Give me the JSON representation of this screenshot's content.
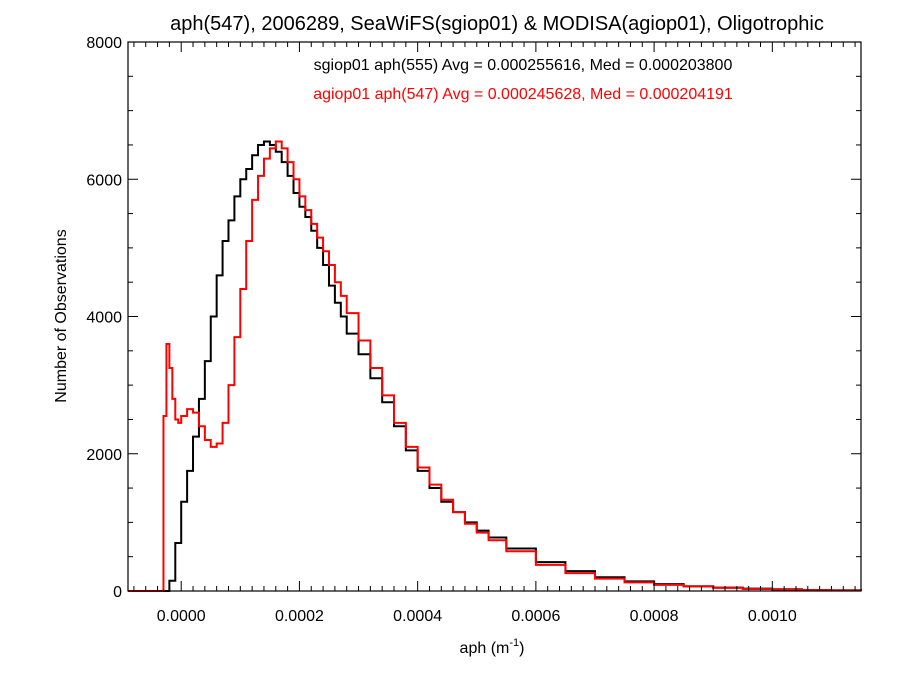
{
  "chart_data": {
    "type": "line",
    "step": true,
    "title": "aph(547), 2006289, SeaWiFS(sgiop01) & MODISA(agiop01), Oligotrophic",
    "xlabel": "aph (m",
    "xlabel_sup": "-1",
    "xlabel_close": ")",
    "ylabel": "Number of Observations",
    "xlim": [
      -9e-05,
      0.00115
    ],
    "ylim": [
      0,
      8000
    ],
    "x_ticks": [
      0.0,
      0.0002,
      0.0004,
      0.0006,
      0.0008,
      0.001
    ],
    "x_tick_labels": [
      "0.0000",
      "0.0002",
      "0.0004",
      "0.0006",
      "0.0008",
      "0.0010"
    ],
    "y_ticks": [
      0,
      2000,
      4000,
      6000,
      8000
    ],
    "y_tick_labels": [
      "0",
      "2000",
      "4000",
      "6000",
      "8000"
    ],
    "grid": false,
    "legend": "top-right annotations",
    "annotations": [
      {
        "text": "sgiop01 aph(555) Avg = 0.000255616, Med = 0.000203800",
        "color": "#000000"
      },
      {
        "text": "agiop01 aph(547) Avg = 0.000245628, Med = 0.000204191",
        "color": "#ff0000"
      }
    ],
    "series": [
      {
        "color": "#000000",
        "points": [
          [
            -9e-05,
            0
          ],
          [
            -3e-05,
            0
          ],
          [
            -2e-05,
            150
          ],
          [
            -1e-05,
            700
          ],
          [
            0.0,
            1300
          ],
          [
            1e-05,
            1750
          ],
          [
            2e-05,
            2250
          ],
          [
            3e-05,
            2800
          ],
          [
            4e-05,
            3350
          ],
          [
            5e-05,
            4000
          ],
          [
            6e-05,
            4600
          ],
          [
            7e-05,
            5100
          ],
          [
            8e-05,
            5400
          ],
          [
            9e-05,
            5750
          ],
          [
            0.0001,
            6000
          ],
          [
            0.00011,
            6150
          ],
          [
            0.00012,
            6350
          ],
          [
            0.00013,
            6500
          ],
          [
            0.00014,
            6550
          ],
          [
            0.00015,
            6500
          ],
          [
            0.00016,
            6400
          ],
          [
            0.00017,
            6250
          ],
          [
            0.00018,
            6050
          ],
          [
            0.00019,
            5800
          ],
          [
            0.0002,
            5600
          ],
          [
            0.00021,
            5450
          ],
          [
            0.00022,
            5250
          ],
          [
            0.00023,
            5000
          ],
          [
            0.00024,
            4750
          ],
          [
            0.00025,
            4450
          ],
          [
            0.00026,
            4200
          ],
          [
            0.00027,
            4000
          ],
          [
            0.00028,
            3750
          ],
          [
            0.0003,
            3450
          ],
          [
            0.00032,
            3100
          ],
          [
            0.00034,
            2750
          ],
          [
            0.00036,
            2400
          ],
          [
            0.00038,
            2050
          ],
          [
            0.0004,
            1750
          ],
          [
            0.00042,
            1500
          ],
          [
            0.00044,
            1300
          ],
          [
            0.00046,
            1150
          ],
          [
            0.00048,
            1000
          ],
          [
            0.0005,
            880
          ],
          [
            0.00052,
            780
          ],
          [
            0.00055,
            620
          ],
          [
            0.0006,
            420
          ],
          [
            0.00065,
            290
          ],
          [
            0.0007,
            200
          ],
          [
            0.00075,
            140
          ],
          [
            0.0008,
            100
          ],
          [
            0.00085,
            70
          ],
          [
            0.0009,
            50
          ],
          [
            0.00095,
            35
          ],
          [
            0.001,
            25
          ],
          [
            0.00105,
            15
          ],
          [
            0.0011,
            10
          ],
          [
            0.00115,
            5
          ]
        ]
      },
      {
        "color": "#ff0000",
        "points": [
          [
            -9e-05,
            0
          ],
          [
            -4e-05,
            0
          ],
          [
            -3e-05,
            2550
          ],
          [
            -2.5e-05,
            3600
          ],
          [
            -2e-05,
            3250
          ],
          [
            -1.5e-05,
            2800
          ],
          [
            -1e-05,
            2500
          ],
          [
            -5e-06,
            2450
          ],
          [
            0.0,
            2550
          ],
          [
            1e-05,
            2650
          ],
          [
            2e-05,
            2600
          ],
          [
            3e-05,
            2400
          ],
          [
            4e-05,
            2200
          ],
          [
            5e-05,
            2100
          ],
          [
            6e-05,
            2150
          ],
          [
            7e-05,
            2450
          ],
          [
            8e-05,
            3000
          ],
          [
            9e-05,
            3700
          ],
          [
            0.0001,
            4400
          ],
          [
            0.00011,
            5100
          ],
          [
            0.00012,
            5700
          ],
          [
            0.00013,
            6050
          ],
          [
            0.00014,
            6300
          ],
          [
            0.00015,
            6450
          ],
          [
            0.00016,
            6550
          ],
          [
            0.00017,
            6450
          ],
          [
            0.00018,
            6250
          ],
          [
            0.00019,
            6000
          ],
          [
            0.0002,
            5750
          ],
          [
            0.00021,
            5550
          ],
          [
            0.00022,
            5350
          ],
          [
            0.00023,
            5150
          ],
          [
            0.00024,
            4950
          ],
          [
            0.00025,
            4750
          ],
          [
            0.00026,
            4500
          ],
          [
            0.00027,
            4300
          ],
          [
            0.00028,
            4050
          ],
          [
            0.0003,
            3650
          ],
          [
            0.00032,
            3250
          ],
          [
            0.00034,
            2850
          ],
          [
            0.00036,
            2450
          ],
          [
            0.00038,
            2100
          ],
          [
            0.0004,
            1800
          ],
          [
            0.00042,
            1550
          ],
          [
            0.00044,
            1330
          ],
          [
            0.00046,
            1150
          ],
          [
            0.00048,
            980
          ],
          [
            0.0005,
            850
          ],
          [
            0.00052,
            740
          ],
          [
            0.00055,
            580
          ],
          [
            0.0006,
            380
          ],
          [
            0.00065,
            260
          ],
          [
            0.0007,
            180
          ],
          [
            0.00075,
            125
          ],
          [
            0.0008,
            90
          ],
          [
            0.00085,
            65
          ],
          [
            0.0009,
            45
          ],
          [
            0.00095,
            30
          ],
          [
            0.001,
            20
          ],
          [
            0.00105,
            12
          ],
          [
            0.0011,
            8
          ],
          [
            0.00115,
            4
          ]
        ]
      }
    ]
  }
}
